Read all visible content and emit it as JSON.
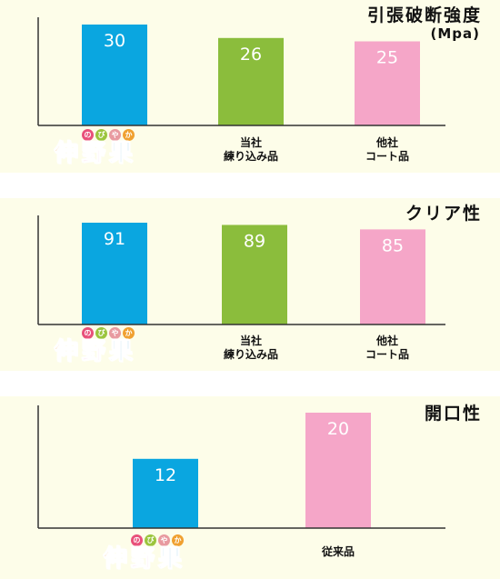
{
  "logo": {
    "ruby": [
      "の",
      "び",
      "や",
      "か"
    ],
    "ruby_colors": [
      "#e8507a",
      "#9bc53d",
      "#e89aa0",
      "#f0a030"
    ],
    "kanji": [
      "伸",
      "野",
      "果"
    ],
    "kanji_colors": [
      "#f08a2a",
      "#e8409a",
      "#3fa9d8"
    ]
  },
  "colors": {
    "blue": "#0aa6e0",
    "green": "#8bbd3c",
    "pink": "#f5a6c8",
    "axis": "#333333"
  },
  "chart_data": [
    {
      "type": "bar",
      "title": "引張破断強度",
      "unit": "(Mpa)",
      "categories": [
        "伸野果",
        "当社\n練り込み品",
        "他社\nコート品"
      ],
      "values": [
        30,
        26,
        25
      ],
      "bar_colors": [
        "#0aa6e0",
        "#8bbd3c",
        "#f5a6c8"
      ],
      "ylim": [
        0,
        30
      ],
      "grid": false
    },
    {
      "type": "bar",
      "title": "クリア性",
      "unit": "",
      "categories": [
        "伸野果",
        "当社\n練り込み品",
        "他社\nコート品"
      ],
      "values": [
        91,
        89,
        85
      ],
      "bar_colors": [
        "#0aa6e0",
        "#8bbd3c",
        "#f5a6c8"
      ],
      "ylim": [
        0,
        91
      ],
      "grid": false
    },
    {
      "type": "bar",
      "title": "開口性",
      "unit": "",
      "categories": [
        "伸野果",
        "従来品"
      ],
      "values": [
        12,
        20
      ],
      "bar_colors": [
        "#0aa6e0",
        "#f5a6c8"
      ],
      "ylim": [
        0,
        20
      ],
      "grid": false
    }
  ]
}
